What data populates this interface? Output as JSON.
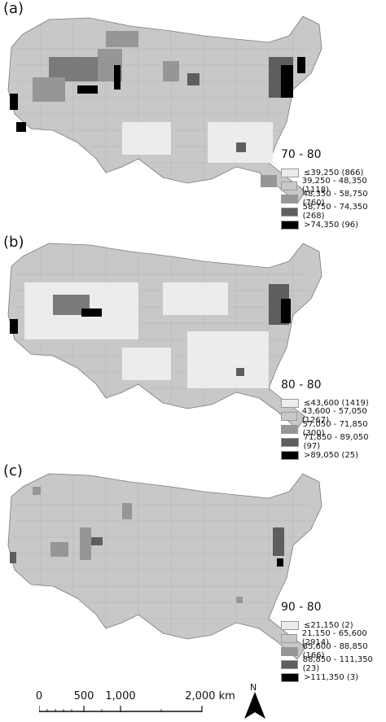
{
  "panels": [
    {
      "label": "(a)",
      "legend": {
        "title": "70 - 80",
        "classes": [
          {
            "label": "≤39,250 (866)",
            "color": "#ececec"
          },
          {
            "label": "39,250 - 48,350 (1118)",
            "color": "#c8c8c8"
          },
          {
            "label": "48,350 - 58,750 (760)",
            "color": "#969696"
          },
          {
            "label": "58,750 - 74,350 (268)",
            "color": "#5e5e5e"
          },
          {
            "label": ">74,350 (96)",
            "color": "#000000"
          }
        ]
      }
    },
    {
      "label": "(b)",
      "legend": {
        "title": "80 - 80",
        "classes": [
          {
            "label": "≤43,600 (1419)",
            "color": "#ececec"
          },
          {
            "label": "43,600 - 57,050 (1267)",
            "color": "#c8c8c8"
          },
          {
            "label": "57,050 - 71,850 (300)",
            "color": "#969696"
          },
          {
            "label": "71,850 - 89,050 (97)",
            "color": "#5e5e5e"
          },
          {
            "label": ">89,050 (25)",
            "color": "#000000"
          }
        ]
      }
    },
    {
      "label": "(c)",
      "legend": {
        "title": "90 - 80",
        "classes": [
          {
            "label": "≤21,150 (2)",
            "color": "#ececec"
          },
          {
            "label": "21,150 - 65,600 (2914)",
            "color": "#c8c8c8"
          },
          {
            "label": "65,600 - 88,850 (166)",
            "color": "#969696"
          },
          {
            "label": "88,850 - 111,350 (23)",
            "color": "#5e5e5e"
          },
          {
            "label": ">111,350 (3)",
            "color": "#000000"
          }
        ]
      }
    }
  ],
  "scale_bar": {
    "labels": [
      "0",
      "500",
      "1,000",
      "2,000 km"
    ]
  },
  "north_arrow": {
    "label": "N"
  }
}
